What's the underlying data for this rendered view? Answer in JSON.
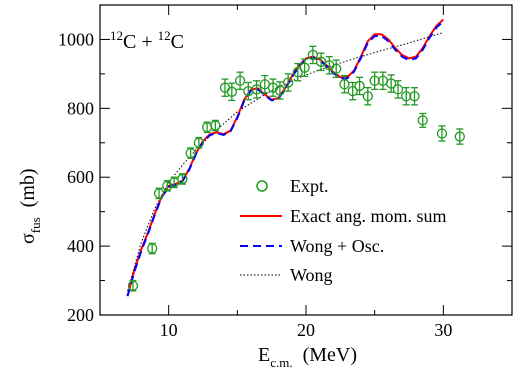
{
  "chart_data": {
    "type": "scatter",
    "title": "",
    "annotation": {
      "prefix": "12",
      "a": "C + ",
      "mid": "12",
      "b": "C"
    },
    "xlabel": {
      "main": "E",
      "sub": "c.m.",
      "unit": "(MeV)"
    },
    "ylabel": {
      "main": "σ",
      "sub": "fus",
      "unit": "(mb)"
    },
    "xlim": [
      5,
      35
    ],
    "ylim": [
      200,
      1100
    ],
    "x_ticks": [
      10,
      20,
      30
    ],
    "y_ticks": [
      200,
      400,
      600,
      800,
      1000
    ],
    "grid": false,
    "legend_position": "lower-center",
    "colors": {
      "expt": "#229922",
      "exact": "#ff0000",
      "wong_osc": "#0000ff",
      "wong": "#000000"
    },
    "series": [
      {
        "name": "Expt.",
        "kind": "points-with-error",
        "points": [
          {
            "x": 7.4,
            "y": 285,
            "err": 15
          },
          {
            "x": 8.8,
            "y": 393,
            "err": 15
          },
          {
            "x": 9.3,
            "y": 553,
            "err": 15
          },
          {
            "x": 9.9,
            "y": 575,
            "err": 15
          },
          {
            "x": 10.4,
            "y": 585,
            "err": 15
          },
          {
            "x": 11.0,
            "y": 595,
            "err": 15
          },
          {
            "x": 11.6,
            "y": 670,
            "err": 15
          },
          {
            "x": 12.2,
            "y": 700,
            "err": 15
          },
          {
            "x": 12.8,
            "y": 745,
            "err": 15
          },
          {
            "x": 13.4,
            "y": 750,
            "err": 15
          },
          {
            "x": 14.1,
            "y": 860,
            "err": 25
          },
          {
            "x": 14.6,
            "y": 848,
            "err": 25
          },
          {
            "x": 15.2,
            "y": 880,
            "err": 25
          },
          {
            "x": 15.8,
            "y": 850,
            "err": 25
          },
          {
            "x": 16.4,
            "y": 855,
            "err": 25
          },
          {
            "x": 17.0,
            "y": 870,
            "err": 25
          },
          {
            "x": 17.6,
            "y": 860,
            "err": 25
          },
          {
            "x": 18.1,
            "y": 852,
            "err": 25
          },
          {
            "x": 18.7,
            "y": 875,
            "err": 25
          },
          {
            "x": 19.4,
            "y": 905,
            "err": 25
          },
          {
            "x": 19.9,
            "y": 918,
            "err": 25
          },
          {
            "x": 20.5,
            "y": 955,
            "err": 25
          },
          {
            "x": 21.1,
            "y": 935,
            "err": 25
          },
          {
            "x": 21.7,
            "y": 925,
            "err": 25
          },
          {
            "x": 22.2,
            "y": 915,
            "err": 25
          },
          {
            "x": 22.8,
            "y": 870,
            "err": 25
          },
          {
            "x": 23.4,
            "y": 850,
            "err": 25
          },
          {
            "x": 23.9,
            "y": 865,
            "err": 25
          },
          {
            "x": 24.5,
            "y": 835,
            "err": 25
          },
          {
            "x": 25.0,
            "y": 880,
            "err": 25
          },
          {
            "x": 25.6,
            "y": 880,
            "err": 25
          },
          {
            "x": 26.2,
            "y": 872,
            "err": 25
          },
          {
            "x": 26.7,
            "y": 855,
            "err": 25
          },
          {
            "x": 27.3,
            "y": 835,
            "err": 25
          },
          {
            "x": 27.9,
            "y": 835,
            "err": 25
          },
          {
            "x": 28.5,
            "y": 765,
            "err": 20
          },
          {
            "x": 29.9,
            "y": 727,
            "err": 22
          },
          {
            "x": 31.2,
            "y": 718,
            "err": 22
          }
        ]
      },
      {
        "name": "Exact ang. mom. sum",
        "kind": "line",
        "x": [
          7.0,
          7.5,
          8.0,
          8.5,
          9.0,
          9.5,
          10.0,
          10.5,
          11.0,
          11.5,
          12.0,
          12.5,
          13.0,
          13.5,
          14.0,
          14.5,
          15.0,
          15.5,
          16.0,
          16.5,
          17.0,
          17.5,
          18.0,
          18.5,
          19.0,
          19.5,
          20.0,
          20.5,
          21.0,
          21.5,
          22.0,
          22.5,
          23.0,
          23.5,
          24.0,
          24.5,
          25.0,
          25.5,
          26.0,
          26.5,
          27.0,
          27.5,
          28.0,
          28.5,
          29.0,
          29.5,
          30.0
        ],
        "y": [
          255,
          330,
          390,
          440,
          495,
          545,
          575,
          580,
          590,
          625,
          670,
          705,
          725,
          730,
          725,
          735,
          775,
          825,
          855,
          858,
          840,
          825,
          830,
          860,
          895,
          925,
          945,
          950,
          942,
          925,
          905,
          890,
          890,
          910,
          950,
          995,
          1015,
          1015,
          1000,
          975,
          955,
          945,
          950,
          975,
          1010,
          1040,
          1058
        ]
      },
      {
        "name": "Wong + Osc.",
        "kind": "line",
        "x": [
          7.0,
          7.5,
          8.0,
          8.5,
          9.0,
          9.5,
          10.0,
          10.5,
          11.0,
          11.5,
          12.0,
          12.5,
          13.0,
          13.5,
          14.0,
          14.5,
          15.0,
          15.5,
          16.0,
          16.5,
          17.0,
          17.5,
          18.0,
          18.5,
          19.0,
          19.5,
          20.0,
          20.5,
          21.0,
          21.5,
          22.0,
          22.5,
          23.0,
          23.5,
          24.0,
          24.5,
          25.0,
          25.5,
          26.0,
          26.5,
          27.0,
          27.5,
          28.0,
          28.5,
          29.0,
          29.5,
          30.0
        ],
        "y": [
          255,
          325,
          385,
          437,
          492,
          542,
          572,
          578,
          588,
          622,
          668,
          702,
          722,
          728,
          723,
          733,
          772,
          822,
          852,
          855,
          838,
          823,
          828,
          857,
          892,
          922,
          942,
          947,
          940,
          922,
          902,
          887,
          887,
          907,
          946,
          990,
          1010,
          1010,
          995,
          970,
          950,
          940,
          945,
          970,
          1005,
          1035,
          1052
        ]
      },
      {
        "name": "Wong",
        "kind": "line",
        "x": [
          7.0,
          8.0,
          9.0,
          10.0,
          11.0,
          12.0,
          13.0,
          14.0,
          15.0,
          16.0,
          17.0,
          18.0,
          19.0,
          20.0,
          21.0,
          22.0,
          23.0,
          24.0,
          25.0,
          26.0,
          27.0,
          28.0,
          29.0,
          30.0
        ],
        "y": [
          270,
          410,
          510,
          585,
          635,
          680,
          720,
          755,
          790,
          815,
          840,
          862,
          880,
          897,
          912,
          925,
          938,
          950,
          962,
          973,
          984,
          996,
          1008,
          1020
        ]
      }
    ]
  }
}
